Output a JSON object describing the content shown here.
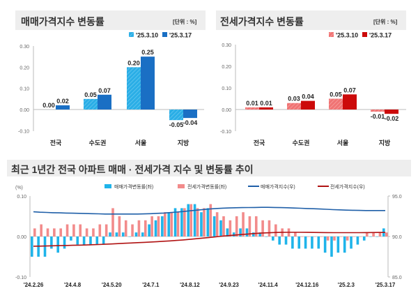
{
  "chart_data": [
    {
      "type": "bar",
      "title": "매매가격지수 변동률",
      "unit_label": "[단위 : %]",
      "categories": [
        "전국",
        "수도권",
        "서울",
        "지방"
      ],
      "series": [
        {
          "name": "'25.3.10",
          "values": [
            0.0,
            0.05,
            0.2,
            -0.05
          ],
          "color": "#2aaee6",
          "hatched": true
        },
        {
          "name": "'25.3.17",
          "values": [
            0.02,
            0.07,
            0.25,
            -0.04
          ],
          "color": "#1a6fc4"
        }
      ],
      "data_labels": [
        [
          "0.00",
          "0.05",
          "0.20",
          "-0.05"
        ],
        [
          "0.02",
          "0.07",
          "0.25",
          "-0.04"
        ]
      ],
      "ylim": [
        -0.1,
        0.3
      ],
      "yticks": [
        "0.30",
        "0.20",
        "0.10",
        "0.00",
        "-0.10"
      ],
      "legend": "top-right"
    },
    {
      "type": "bar",
      "title": "전세가격지수 변동률",
      "unit_label": "[단위 : %]",
      "categories": [
        "전국",
        "수도권",
        "서울",
        "지방"
      ],
      "series": [
        {
          "name": "'25.3.10",
          "values": [
            0.01,
            0.03,
            0.05,
            -0.01
          ],
          "color": "#f07373",
          "hatched": true
        },
        {
          "name": "'25.3.17",
          "values": [
            0.01,
            0.04,
            0.07,
            -0.02
          ],
          "color": "#cc0a0a"
        }
      ],
      "data_labels": [
        [
          "0.01",
          "0.03",
          "0.05",
          "-0.01"
        ],
        [
          "0.01",
          "0.04",
          "0.07",
          "-0.02"
        ]
      ],
      "ylim": [
        -0.1,
        0.3
      ],
      "yticks": [
        "0.30",
        "0.20",
        "0.10",
        "0.00",
        "-0.10"
      ],
      "legend": "top-right"
    },
    {
      "type": "bar+line",
      "title": "최근 1년간 전국 아파트 매매 · 전세가격 지수 및 변동률 추이",
      "ylabel_left": "(%)",
      "ylim_left": [
        -0.1,
        0.1
      ],
      "yticks_left": [
        "0.10",
        "0.00",
        "-0.10"
      ],
      "ylim_right": [
        85.0,
        95.0
      ],
      "yticks_right": [
        "95.0",
        "90.0",
        "85.0"
      ],
      "xticks": [
        "'24.2.26",
        "'24.4.8",
        "'24.5.20",
        "'24.7.1",
        "'24.8.12",
        "'24.9.23",
        "'24.11.4",
        "'24.12.16",
        "'25.2.3",
        "'25.3.17"
      ],
      "week_count": 55,
      "legend": "top",
      "series": [
        {
          "name": "매매가격변동률(좌)",
          "kind": "bar",
          "axis": "left",
          "color": "#1fb4ea",
          "values": [
            -0.05,
            -0.05,
            -0.05,
            -0.03,
            -0.04,
            -0.03,
            -0.01,
            -0.02,
            -0.02,
            -0.02,
            -0.02,
            -0.02,
            0.01,
            0.01,
            0.01,
            0.0,
            0.01,
            0.01,
            0.03,
            0.04,
            0.05,
            0.06,
            0.07,
            0.07,
            0.08,
            0.08,
            0.06,
            0.07,
            0.05,
            0.04,
            0.02,
            0.01,
            0.02,
            0.02,
            0.01,
            0.01,
            0.0,
            -0.01,
            -0.02,
            -0.02,
            -0.03,
            -0.03,
            -0.03,
            -0.03,
            -0.03,
            -0.04,
            -0.05,
            -0.04,
            -0.04,
            -0.03,
            -0.02,
            -0.01,
            0.0,
            0.0,
            0.02
          ]
        },
        {
          "name": "전세가격변동률(좌)",
          "kind": "bar",
          "axis": "left",
          "color": "#f28b8b",
          "values": [
            0.02,
            0.03,
            0.02,
            0.02,
            0.02,
            0.03,
            0.03,
            0.03,
            0.02,
            0.02,
            0.03,
            0.03,
            0.07,
            0.05,
            0.04,
            0.03,
            0.04,
            0.04,
            0.05,
            0.05,
            0.06,
            0.06,
            0.06,
            0.07,
            0.08,
            0.07,
            0.07,
            0.08,
            0.06,
            0.05,
            0.04,
            0.05,
            0.06,
            0.05,
            0.05,
            0.04,
            0.04,
            0.03,
            0.02,
            0.02,
            0.01,
            0.0,
            0.0,
            0.0,
            0.0,
            -0.01,
            -0.01,
            0.0,
            -0.01,
            0.0,
            0.0,
            0.01,
            0.01,
            0.01,
            0.01
          ]
        },
        {
          "name": "매매가격지수(우)",
          "kind": "line",
          "axis": "right",
          "color": "#1f5fa8",
          "values": [
            93.05,
            93.0,
            92.97,
            92.94,
            92.92,
            92.9,
            92.88,
            92.86,
            92.84,
            92.82,
            92.8,
            92.78,
            92.78,
            92.78,
            92.78,
            92.78,
            92.78,
            92.79,
            92.82,
            92.86,
            92.9,
            92.96,
            93.02,
            93.09,
            93.17,
            93.25,
            93.33,
            93.4,
            93.46,
            93.5,
            93.53,
            93.55,
            93.57,
            93.58,
            93.59,
            93.6,
            93.6,
            93.59,
            93.57,
            93.55,
            93.52,
            93.49,
            93.46,
            93.43,
            93.4,
            93.36,
            93.32,
            93.29,
            93.26,
            93.24,
            93.22,
            93.21,
            93.21,
            93.21,
            93.21
          ]
        },
        {
          "name": "전세가격지수(우)",
          "kind": "line",
          "axis": "right",
          "color": "#b01212",
          "values": [
            88.8,
            88.81,
            88.83,
            88.85,
            88.87,
            88.89,
            88.91,
            88.93,
            88.95,
            88.98,
            89.01,
            89.04,
            89.08,
            89.12,
            89.16,
            89.2,
            89.24,
            89.28,
            89.32,
            89.36,
            89.41,
            89.46,
            89.52,
            89.58,
            89.65,
            89.72,
            89.8,
            89.88,
            89.96,
            90.04,
            90.11,
            90.18,
            90.25,
            90.31,
            90.37,
            90.42,
            90.46,
            90.49,
            90.51,
            90.52,
            90.52,
            90.52,
            90.51,
            90.5,
            90.49,
            90.48,
            90.47,
            90.47,
            90.47,
            90.47,
            90.47,
            90.48,
            90.49,
            90.5,
            90.5
          ]
        }
      ]
    }
  ]
}
